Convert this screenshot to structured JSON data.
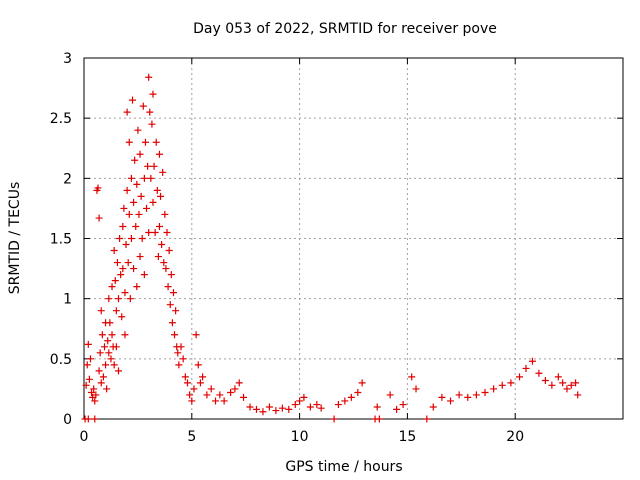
{
  "chart_data": {
    "type": "scatter",
    "title": "Day 053 of 2022, SRMTID for receiver pove",
    "xlabel": "GPS time / hours",
    "ylabel": "SRMTID / TECUs",
    "xlim": [
      0,
      25
    ],
    "ylim": [
      0,
      3
    ],
    "xticks": [
      0,
      5,
      10,
      15,
      20
    ],
    "xtick_labels": [
      "0",
      "5",
      "10",
      "15",
      "20"
    ],
    "yticks": [
      0,
      0.5,
      1,
      1.5,
      2,
      2.5,
      3
    ],
    "ytick_labels": [
      "0",
      "0.5",
      "1",
      "1.5",
      "2",
      "2.5",
      "3"
    ],
    "grid": true,
    "marker": "+",
    "series": [
      {
        "name": "pove",
        "color": "#e00000",
        "points": [
          [
            0.05,
            0.0
          ],
          [
            0.2,
            0.0
          ],
          [
            0.5,
            0.0
          ],
          [
            0.1,
            0.28
          ],
          [
            0.15,
            0.45
          ],
          [
            0.2,
            0.62
          ],
          [
            0.25,
            0.33
          ],
          [
            0.3,
            0.5
          ],
          [
            0.35,
            0.22
          ],
          [
            0.4,
            0.18
          ],
          [
            0.45,
            0.25
          ],
          [
            0.5,
            0.15
          ],
          [
            0.55,
            0.2
          ],
          [
            0.6,
            1.9
          ],
          [
            0.65,
            1.92
          ],
          [
            0.7,
            1.67
          ],
          [
            0.7,
            0.4
          ],
          [
            0.75,
            0.55
          ],
          [
            0.8,
            0.9
          ],
          [
            0.8,
            0.3
          ],
          [
            0.85,
            0.7
          ],
          [
            0.9,
            0.35
          ],
          [
            0.95,
            0.6
          ],
          [
            1.0,
            0.8
          ],
          [
            1.0,
            0.45
          ],
          [
            1.05,
            0.25
          ],
          [
            1.1,
            0.65
          ],
          [
            1.15,
            1.0
          ],
          [
            1.15,
            0.55
          ],
          [
            1.2,
            0.8
          ],
          [
            1.25,
            0.5
          ],
          [
            1.3,
            1.1
          ],
          [
            1.3,
            0.7
          ],
          [
            1.35,
            0.6
          ],
          [
            1.4,
            1.4
          ],
          [
            1.4,
            0.45
          ],
          [
            1.45,
            1.15
          ],
          [
            1.5,
            0.9
          ],
          [
            1.5,
            0.6
          ],
          [
            1.55,
            1.3
          ],
          [
            1.6,
            1.0
          ],
          [
            1.6,
            0.4
          ],
          [
            1.65,
            1.5
          ],
          [
            1.7,
            1.2
          ],
          [
            1.75,
            0.85
          ],
          [
            1.8,
            1.6
          ],
          [
            1.8,
            1.25
          ],
          [
            1.85,
            1.75
          ],
          [
            1.9,
            1.05
          ],
          [
            1.9,
            0.7
          ],
          [
            1.95,
            1.45
          ],
          [
            2.0,
            2.55
          ],
          [
            2.0,
            1.9
          ],
          [
            2.05,
            1.3
          ],
          [
            2.1,
            2.3
          ],
          [
            2.1,
            1.7
          ],
          [
            2.15,
            1.0
          ],
          [
            2.2,
            2.0
          ],
          [
            2.2,
            1.5
          ],
          [
            2.25,
            2.65
          ],
          [
            2.3,
            1.8
          ],
          [
            2.3,
            1.25
          ],
          [
            2.35,
            2.15
          ],
          [
            2.4,
            1.6
          ],
          [
            2.45,
            1.95
          ],
          [
            2.45,
            1.1
          ],
          [
            2.5,
            2.4
          ],
          [
            2.55,
            1.7
          ],
          [
            2.6,
            2.2
          ],
          [
            2.6,
            1.35
          ],
          [
            2.65,
            1.85
          ],
          [
            2.7,
            1.5
          ],
          [
            2.75,
            2.6
          ],
          [
            2.8,
            2.0
          ],
          [
            2.8,
            1.2
          ],
          [
            2.85,
            2.3
          ],
          [
            2.9,
            1.75
          ],
          [
            2.95,
            2.1
          ],
          [
            3.0,
            2.84
          ],
          [
            3.0,
            1.55
          ],
          [
            3.05,
            2.55
          ],
          [
            3.1,
            2.0
          ],
          [
            3.15,
            2.45
          ],
          [
            3.2,
            2.7
          ],
          [
            3.2,
            1.8
          ],
          [
            3.25,
            2.1
          ],
          [
            3.3,
            1.55
          ],
          [
            3.35,
            2.3
          ],
          [
            3.4,
            1.9
          ],
          [
            3.45,
            1.35
          ],
          [
            3.5,
            2.2
          ],
          [
            3.5,
            1.6
          ],
          [
            3.55,
            1.85
          ],
          [
            3.6,
            1.45
          ],
          [
            3.65,
            2.05
          ],
          [
            3.7,
            1.3
          ],
          [
            3.75,
            1.7
          ],
          [
            3.8,
            1.25
          ],
          [
            3.85,
            1.55
          ],
          [
            3.9,
            1.1
          ],
          [
            3.95,
            1.4
          ],
          [
            4.0,
            0.95
          ],
          [
            4.05,
            1.2
          ],
          [
            4.1,
            0.8
          ],
          [
            4.15,
            1.05
          ],
          [
            4.2,
            0.7
          ],
          [
            4.25,
            0.9
          ],
          [
            4.3,
            0.6
          ],
          [
            4.35,
            0.55
          ],
          [
            4.4,
            0.45
          ],
          [
            4.5,
            0.6
          ],
          [
            4.6,
            0.5
          ],
          [
            4.7,
            0.35
          ],
          [
            4.8,
            0.3
          ],
          [
            4.9,
            0.2
          ],
          [
            5.0,
            0.15
          ],
          [
            5.1,
            0.25
          ],
          [
            5.2,
            0.7
          ],
          [
            5.3,
            0.45
          ],
          [
            5.4,
            0.3
          ],
          [
            5.5,
            0.35
          ],
          [
            5.7,
            0.2
          ],
          [
            5.9,
            0.25
          ],
          [
            6.1,
            0.15
          ],
          [
            6.3,
            0.2
          ],
          [
            6.5,
            0.15
          ],
          [
            6.8,
            0.22
          ],
          [
            7.0,
            0.25
          ],
          [
            7.2,
            0.3
          ],
          [
            7.4,
            0.18
          ],
          [
            7.7,
            0.1
          ],
          [
            8.0,
            0.08
          ],
          [
            8.3,
            0.06
          ],
          [
            8.6,
            0.1
          ],
          [
            8.9,
            0.07
          ],
          [
            9.2,
            0.09
          ],
          [
            9.5,
            0.08
          ],
          [
            9.8,
            0.12
          ],
          [
            10.0,
            0.15
          ],
          [
            10.2,
            0.18
          ],
          [
            10.5,
            0.1
          ],
          [
            10.8,
            0.12
          ],
          [
            11.0,
            0.09
          ],
          [
            11.6,
            0.0
          ],
          [
            11.8,
            0.12
          ],
          [
            12.1,
            0.15
          ],
          [
            12.4,
            0.18
          ],
          [
            12.7,
            0.22
          ],
          [
            12.9,
            0.3
          ],
          [
            13.5,
            0.0
          ],
          [
            13.7,
            0.0
          ],
          [
            13.6,
            0.1
          ],
          [
            14.2,
            0.2
          ],
          [
            14.5,
            0.08
          ],
          [
            14.8,
            0.12
          ],
          [
            15.2,
            0.35
          ],
          [
            15.4,
            0.25
          ],
          [
            15.9,
            0.0
          ],
          [
            16.2,
            0.1
          ],
          [
            16.6,
            0.18
          ],
          [
            17.0,
            0.15
          ],
          [
            17.4,
            0.2
          ],
          [
            17.8,
            0.18
          ],
          [
            18.2,
            0.2
          ],
          [
            18.6,
            0.22
          ],
          [
            19.0,
            0.25
          ],
          [
            19.4,
            0.28
          ],
          [
            19.8,
            0.3
          ],
          [
            20.2,
            0.35
          ],
          [
            20.5,
            0.42
          ],
          [
            20.8,
            0.48
          ],
          [
            21.1,
            0.38
          ],
          [
            21.4,
            0.32
          ],
          [
            21.7,
            0.28
          ],
          [
            22.0,
            0.35
          ],
          [
            22.2,
            0.3
          ],
          [
            22.4,
            0.25
          ],
          [
            22.6,
            0.28
          ],
          [
            22.8,
            0.3
          ],
          [
            22.9,
            0.2
          ]
        ]
      }
    ]
  }
}
